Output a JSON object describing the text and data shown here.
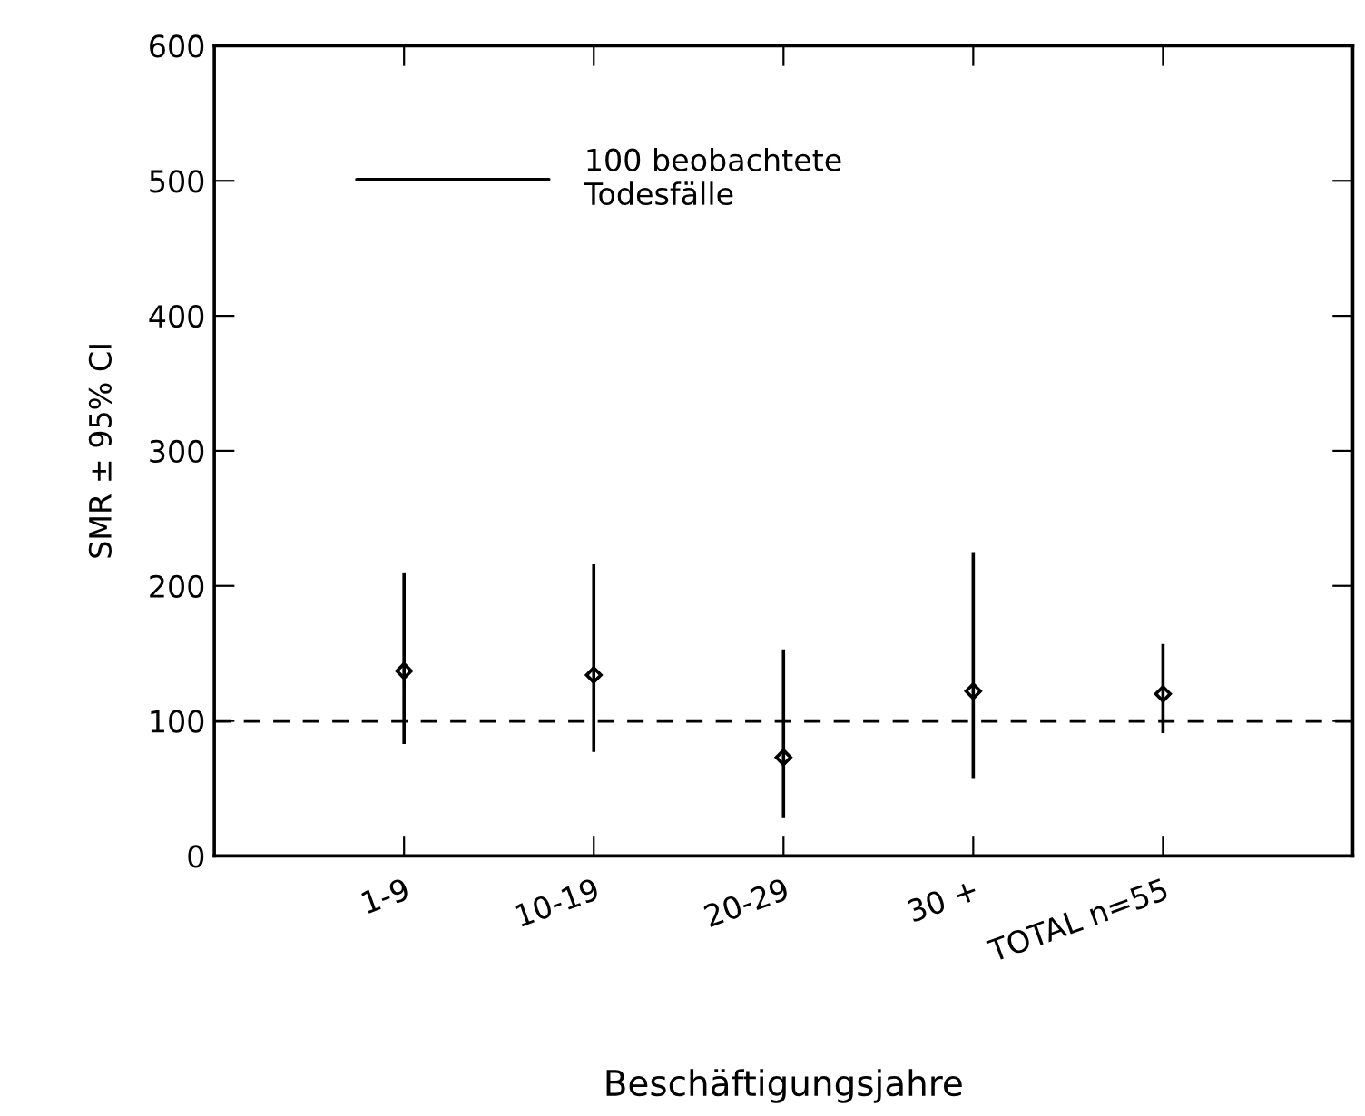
{
  "chart_data": {
    "type": "scatter",
    "xlabel": "Beschäftigungsjahre",
    "ylabel": "SMR ± 95% CI",
    "categories": [
      "1-9",
      "10-19",
      "20-29",
      "30 +",
      "TOTAL n=55"
    ],
    "values": [
      137,
      134,
      73,
      122,
      120
    ],
    "errors": [
      [
        83,
        210
      ],
      [
        77,
        216
      ],
      [
        28,
        153
      ],
      [
        57,
        225
      ],
      [
        91,
        157
      ]
    ],
    "color": "#000000",
    "marker": "diamond",
    "ylim": [
      0,
      600
    ],
    "yticks": [
      0,
      100,
      200,
      300,
      400,
      500,
      600
    ],
    "ref_lines": [
      {
        "axis": "y",
        "value": 100,
        "line_style": "dashed",
        "color": "#000000"
      }
    ],
    "annotations": [
      "100 beobachtete\nTodesfälle"
    ],
    "grid": false
  }
}
